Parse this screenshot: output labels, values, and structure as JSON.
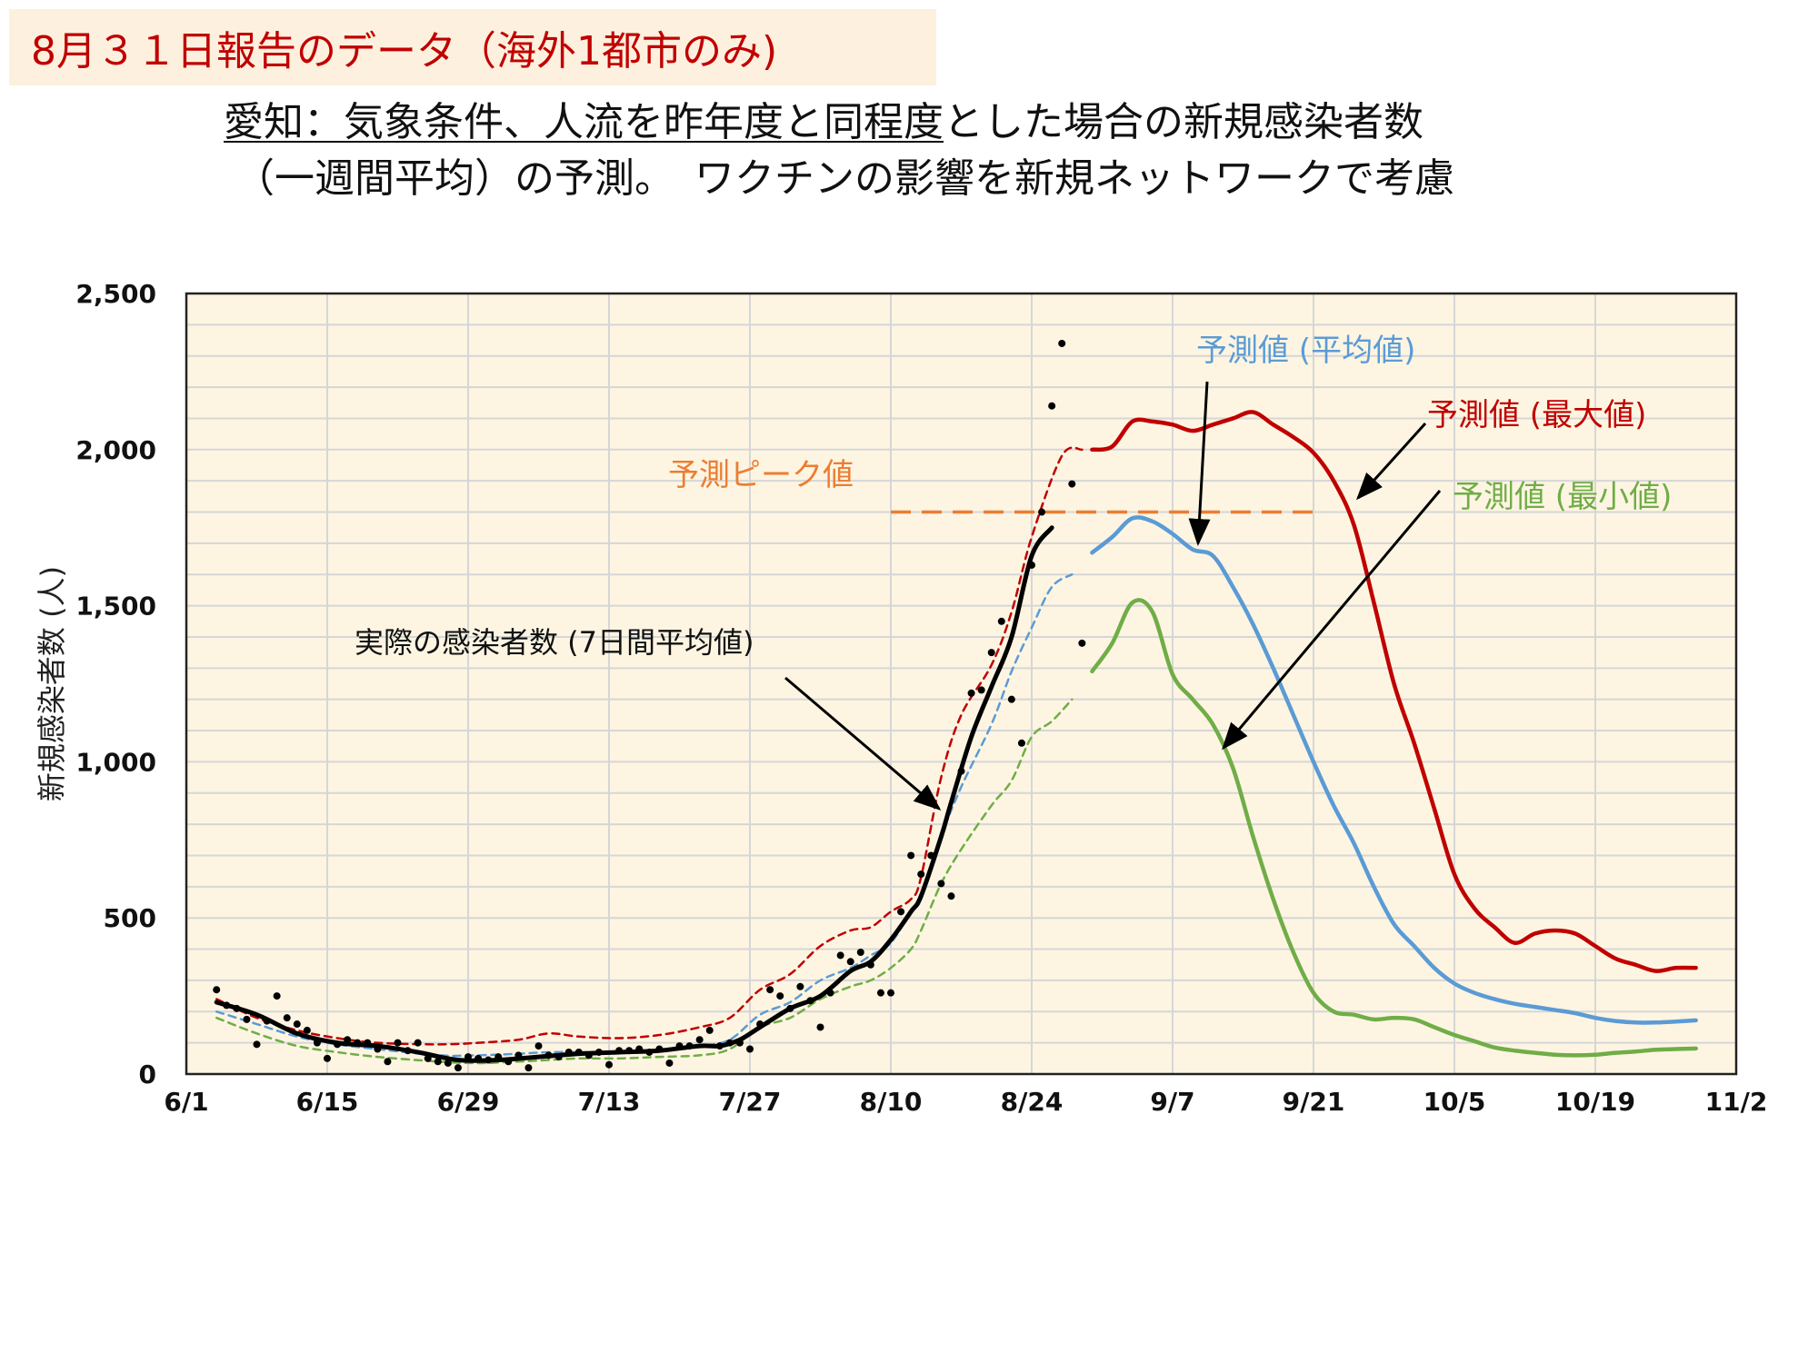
{
  "slide_label": "8月３１日報告のデータ（海外1都市のみ)",
  "headline": {
    "line1_underlined": "愛知：気象条件、人流を昨年度と同程度",
    "line1_rest": "とした場合の新規感染者数",
    "line2": "（一週間平均）の予測。　ワクチンの影響を新規ネットワークで考慮"
  },
  "colors": {
    "actual": "#000000",
    "mean": "#5b9bd5",
    "max": "#c00000",
    "min": "#70ad47",
    "peak": "#ed7d31",
    "plot_bg": "#fdf5e2",
    "grid": "#d6d6d6"
  },
  "chart_data": {
    "type": "line",
    "title": "",
    "xlabel": "",
    "ylabel": "新規感染者数 (人)",
    "xlim": [
      "6/1",
      "11/2"
    ],
    "ylim": [
      0,
      2500
    ],
    "grid": true,
    "x_tick_labels": [
      "6/1",
      "6/15",
      "6/29",
      "7/13",
      "7/27",
      "8/10",
      "8/24",
      "9/7",
      "9/21",
      "10/5",
      "10/19",
      "11/2"
    ],
    "y_tick_labels": [
      "0",
      "500",
      "1,000",
      "1,500",
      "2,000",
      "2,500"
    ],
    "y_tick_values": [
      0,
      500,
      1000,
      1500,
      2000,
      2500
    ],
    "series": [
      {
        "key": "actual",
        "style": "solid-black",
        "points": [
          [
            "6/4",
            230
          ],
          [
            "6/8",
            190
          ],
          [
            "6/12",
            130
          ],
          [
            "6/16",
            100
          ],
          [
            "6/20",
            90
          ],
          [
            "6/24",
            70
          ],
          [
            "6/28",
            45
          ],
          [
            "7/2",
            45
          ],
          [
            "7/6",
            55
          ],
          [
            "7/10",
            65
          ],
          [
            "7/14",
            70
          ],
          [
            "7/18",
            75
          ],
          [
            "7/22",
            90
          ],
          [
            "7/24",
            90
          ],
          [
            "7/26",
            110
          ],
          [
            "7/28",
            150
          ],
          [
            "7/31",
            210
          ],
          [
            "8/3",
            250
          ],
          [
            "8/6",
            330
          ],
          [
            "8/8",
            360
          ],
          [
            "8/10",
            430
          ],
          [
            "8/12",
            520
          ],
          [
            "8/13",
            570
          ],
          [
            "8/15",
            760
          ],
          [
            "8/16",
            870
          ],
          [
            "8/18",
            1080
          ],
          [
            "8/20",
            1240
          ],
          [
            "8/22",
            1400
          ],
          [
            "8/24",
            1660
          ],
          [
            "8/26",
            1750
          ]
        ]
      },
      {
        "key": "max_fit",
        "style": "dashed",
        "points": [
          [
            "6/4",
            240
          ],
          [
            "6/8",
            180
          ],
          [
            "6/12",
            140
          ],
          [
            "6/16",
            115
          ],
          [
            "6/20",
            100
          ],
          [
            "6/26",
            95
          ],
          [
            "6/30",
            100
          ],
          [
            "7/4",
            110
          ],
          [
            "7/7",
            130
          ],
          [
            "7/10",
            120
          ],
          [
            "7/14",
            115
          ],
          [
            "7/18",
            125
          ],
          [
            "7/22",
            150
          ],
          [
            "7/25",
            180
          ],
          [
            "7/28",
            270
          ],
          [
            "7/31",
            320
          ],
          [
            "8/3",
            410
          ],
          [
            "8/6",
            460
          ],
          [
            "8/8",
            470
          ],
          [
            "8/10",
            520
          ],
          [
            "8/12",
            560
          ],
          [
            "8/13",
            630
          ],
          [
            "8/15",
            950
          ],
          [
            "8/17",
            1150
          ],
          [
            "8/20",
            1310
          ],
          [
            "8/22",
            1480
          ],
          [
            "8/24",
            1720
          ],
          [
            "8/27",
            1980
          ],
          [
            "8/29",
            2000
          ]
        ]
      },
      {
        "key": "mean_fit",
        "style": "dashed",
        "points": [
          [
            "6/4",
            200
          ],
          [
            "6/8",
            160
          ],
          [
            "6/12",
            120
          ],
          [
            "6/16",
            95
          ],
          [
            "6/20",
            80
          ],
          [
            "6/26",
            60
          ],
          [
            "6/30",
            60
          ],
          [
            "7/4",
            65
          ],
          [
            "7/7",
            70
          ],
          [
            "7/10",
            70
          ],
          [
            "7/14",
            70
          ],
          [
            "7/18",
            75
          ],
          [
            "7/22",
            90
          ],
          [
            "7/25",
            110
          ],
          [
            "7/28",
            190
          ],
          [
            "7/31",
            230
          ],
          [
            "8/3",
            300
          ],
          [
            "8/6",
            340
          ],
          [
            "8/8",
            380
          ],
          [
            "8/10",
            420
          ],
          [
            "8/12",
            520
          ],
          [
            "8/13",
            560
          ],
          [
            "8/15",
            760
          ],
          [
            "8/17",
            920
          ],
          [
            "8/20",
            1120
          ],
          [
            "8/22",
            1290
          ],
          [
            "8/24",
            1430
          ],
          [
            "8/26",
            1560
          ],
          [
            "8/28",
            1600
          ]
        ]
      },
      {
        "key": "min_fit",
        "style": "dashed",
        "points": [
          [
            "6/4",
            180
          ],
          [
            "6/8",
            130
          ],
          [
            "6/12",
            90
          ],
          [
            "6/16",
            70
          ],
          [
            "6/20",
            55
          ],
          [
            "6/26",
            40
          ],
          [
            "6/30",
            35
          ],
          [
            "7/4",
            40
          ],
          [
            "7/7",
            45
          ],
          [
            "7/10",
            50
          ],
          [
            "7/14",
            50
          ],
          [
            "7/18",
            55
          ],
          [
            "7/22",
            60
          ],
          [
            "7/25",
            80
          ],
          [
            "7/28",
            150
          ],
          [
            "7/31",
            180
          ],
          [
            "8/3",
            240
          ],
          [
            "8/6",
            280
          ],
          [
            "8/8",
            300
          ],
          [
            "8/10",
            340
          ],
          [
            "8/12",
            400
          ],
          [
            "8/13",
            460
          ],
          [
            "8/15",
            610
          ],
          [
            "8/17",
            720
          ],
          [
            "8/20",
            860
          ],
          [
            "8/22",
            940
          ],
          [
            "8/24",
            1080
          ],
          [
            "8/26",
            1130
          ],
          [
            "8/28",
            1200
          ]
        ]
      },
      {
        "key": "max",
        "name": "予測値 (最大値)",
        "style": "solid",
        "points": [
          [
            "8/30",
            2000
          ],
          [
            "9/1",
            2010
          ],
          [
            "9/3",
            2090
          ],
          [
            "9/5",
            2090
          ],
          [
            "9/7",
            2080
          ],
          [
            "9/9",
            2060
          ],
          [
            "9/11",
            2080
          ],
          [
            "9/13",
            2100
          ],
          [
            "9/15",
            2120
          ],
          [
            "9/17",
            2080
          ],
          [
            "9/19",
            2040
          ],
          [
            "9/21",
            1990
          ],
          [
            "9/23",
            1900
          ],
          [
            "9/25",
            1760
          ],
          [
            "9/27",
            1510
          ],
          [
            "9/29",
            1250
          ],
          [
            "10/1",
            1060
          ],
          [
            "10/3",
            850
          ],
          [
            "10/5",
            640
          ],
          [
            "10/7",
            530
          ],
          [
            "10/9",
            470
          ],
          [
            "10/11",
            420
          ],
          [
            "10/13",
            450
          ],
          [
            "10/15",
            460
          ],
          [
            "10/17",
            450
          ],
          [
            "10/19",
            410
          ],
          [
            "10/21",
            370
          ],
          [
            "10/23",
            350
          ],
          [
            "10/25",
            330
          ],
          [
            "10/27",
            340
          ],
          [
            "10/29",
            340
          ]
        ]
      },
      {
        "key": "mean",
        "name": "予測値 (平均値)",
        "style": "solid",
        "points": [
          [
            "8/30",
            1670
          ],
          [
            "9/1",
            1720
          ],
          [
            "9/3",
            1780
          ],
          [
            "9/5",
            1770
          ],
          [
            "9/7",
            1730
          ],
          [
            "9/9",
            1680
          ],
          [
            "9/11",
            1660
          ],
          [
            "9/13",
            1560
          ],
          [
            "9/15",
            1440
          ],
          [
            "9/17",
            1300
          ],
          [
            "9/19",
            1150
          ],
          [
            "9/21",
            1000
          ],
          [
            "9/23",
            860
          ],
          [
            "9/25",
            740
          ],
          [
            "9/27",
            600
          ],
          [
            "9/29",
            480
          ],
          [
            "10/1",
            410
          ],
          [
            "10/3",
            340
          ],
          [
            "10/5",
            290
          ],
          [
            "10/7",
            260
          ],
          [
            "10/9",
            240
          ],
          [
            "10/11",
            225
          ],
          [
            "10/13",
            215
          ],
          [
            "10/15",
            205
          ],
          [
            "10/17",
            195
          ],
          [
            "10/19",
            180
          ],
          [
            "10/21",
            170
          ],
          [
            "10/23",
            165
          ],
          [
            "10/25",
            165
          ],
          [
            "10/27",
            168
          ],
          [
            "10/29",
            172
          ]
        ]
      },
      {
        "key": "min",
        "name": "予測値 (最小値)",
        "style": "solid",
        "points": [
          [
            "8/30",
            1290
          ],
          [
            "9/1",
            1380
          ],
          [
            "9/3",
            1510
          ],
          [
            "9/5",
            1480
          ],
          [
            "9/7",
            1280
          ],
          [
            "9/9",
            1200
          ],
          [
            "9/11",
            1120
          ],
          [
            "9/13",
            980
          ],
          [
            "9/15",
            760
          ],
          [
            "9/17",
            560
          ],
          [
            "9/19",
            390
          ],
          [
            "9/21",
            260
          ],
          [
            "9/23",
            200
          ],
          [
            "9/25",
            190
          ],
          [
            "9/27",
            175
          ],
          [
            "9/29",
            180
          ],
          [
            "10/1",
            175
          ],
          [
            "10/3",
            150
          ],
          [
            "10/5",
            125
          ],
          [
            "10/7",
            105
          ],
          [
            "10/9",
            85
          ],
          [
            "10/11",
            75
          ],
          [
            "10/13",
            68
          ],
          [
            "10/15",
            62
          ],
          [
            "10/17",
            60
          ],
          [
            "10/19",
            62
          ],
          [
            "10/21",
            68
          ],
          [
            "10/23",
            72
          ],
          [
            "10/25",
            78
          ],
          [
            "10/27",
            80
          ],
          [
            "10/29",
            82
          ]
        ]
      }
    ],
    "daily_points": [
      [
        "6/4",
        270
      ],
      [
        "6/5",
        220
      ],
      [
        "6/6",
        210
      ],
      [
        "6/7",
        175
      ],
      [
        "6/8",
        95
      ],
      [
        "6/9",
        170
      ],
      [
        "6/10",
        250
      ],
      [
        "6/11",
        180
      ],
      [
        "6/12",
        160
      ],
      [
        "6/13",
        140
      ],
      [
        "6/14",
        100
      ],
      [
        "6/15",
        50
      ],
      [
        "6/16",
        95
      ],
      [
        "6/17",
        110
      ],
      [
        "6/18",
        100
      ],
      [
        "6/19",
        100
      ],
      [
        "6/20",
        80
      ],
      [
        "6/21",
        40
      ],
      [
        "6/22",
        100
      ],
      [
        "6/23",
        75
      ],
      [
        "6/24",
        100
      ],
      [
        "6/25",
        50
      ],
      [
        "6/26",
        40
      ],
      [
        "6/27",
        35
      ],
      [
        "6/28",
        20
      ],
      [
        "6/29",
        55
      ],
      [
        "6/30",
        50
      ],
      [
        "7/1",
        45
      ],
      [
        "7/2",
        55
      ],
      [
        "7/3",
        40
      ],
      [
        "7/4",
        60
      ],
      [
        "7/5",
        20
      ],
      [
        "7/6",
        90
      ],
      [
        "7/7",
        60
      ],
      [
        "7/8",
        55
      ],
      [
        "7/9",
        70
      ],
      [
        "7/10",
        70
      ],
      [
        "7/11",
        60
      ],
      [
        "7/12",
        70
      ],
      [
        "7/13",
        30
      ],
      [
        "7/14",
        75
      ],
      [
        "7/15",
        75
      ],
      [
        "7/16",
        80
      ],
      [
        "7/17",
        70
      ],
      [
        "7/18",
        80
      ],
      [
        "7/19",
        35
      ],
      [
        "7/20",
        90
      ],
      [
        "7/21",
        90
      ],
      [
        "7/22",
        110
      ],
      [
        "7/23",
        140
      ],
      [
        "7/24",
        90
      ],
      [
        "7/25",
        100
      ],
      [
        "7/26",
        100
      ],
      [
        "7/27",
        80
      ],
      [
        "7/28",
        160
      ],
      [
        "7/29",
        270
      ],
      [
        "7/30",
        250
      ],
      [
        "7/31",
        210
      ],
      [
        "8/1",
        280
      ],
      [
        "8/2",
        235
      ],
      [
        "8/3",
        150
      ],
      [
        "8/4",
        260
      ],
      [
        "8/5",
        380
      ],
      [
        "8/6",
        360
      ],
      [
        "8/7",
        390
      ],
      [
        "8/8",
        350
      ],
      [
        "8/9",
        260
      ],
      [
        "8/10",
        260
      ],
      [
        "8/11",
        520
      ],
      [
        "8/12",
        700
      ],
      [
        "8/13",
        640
      ],
      [
        "8/14",
        700
      ],
      [
        "8/15",
        610
      ],
      [
        "8/16",
        570
      ],
      [
        "8/17",
        970
      ],
      [
        "8/18",
        1220
      ],
      [
        "8/19",
        1230
      ],
      [
        "8/20",
        1350
      ],
      [
        "8/21",
        1450
      ],
      [
        "8/22",
        1200
      ],
      [
        "8/23",
        1060
      ],
      [
        "8/24",
        1630
      ],
      [
        "8/25",
        1800
      ],
      [
        "8/26",
        2140
      ],
      [
        "8/27",
        2340
      ],
      [
        "8/28",
        1890
      ],
      [
        "8/29",
        1380
      ]
    ],
    "peak_line": {
      "label": "予測ピーク値",
      "value": 1800,
      "from": "8/10",
      "to": "9/22"
    },
    "annotations": [
      {
        "text": "実際の感染者数 (7日間平均値)",
        "target": "actual"
      },
      {
        "text": "予測値 (平均値)",
        "target": "mean"
      },
      {
        "text": "予測値 (最大値)",
        "target": "max"
      },
      {
        "text": "予測値 (最小値)",
        "target": "min"
      },
      {
        "text": "予測ピーク値",
        "target": "peak_line"
      }
    ]
  }
}
